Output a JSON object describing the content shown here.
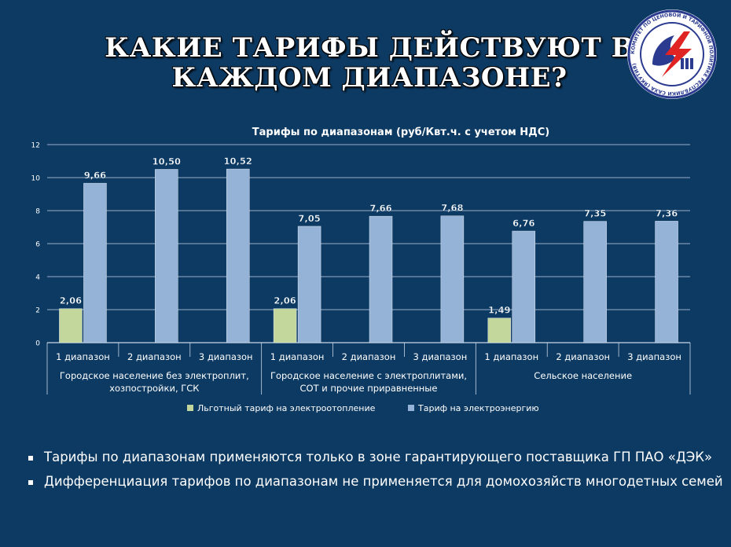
{
  "slide": {
    "title_line1": "КАКИЕ ТАРИФЫ ДЕЙСТВУЮТ В",
    "title_line2": "КАЖДОМ ДИАПАЗОНЕ?",
    "logo_text": "КОМИТЕТ ПО ЦЕНОВОЙ И ТАРИФНОЙ ПОЛИТИКЕ РЕСПУБЛИКИ САХА (ЯКУТИЯ)",
    "bullets": [
      "Тарифы по диапазонам применяются только в зоне гарантирующего поставщика ГП ПАО «ДЭК»",
      "Дифференциация тарифов по диапазонам не применяется для домохозяйств многодетных семей"
    ]
  },
  "chart_data": {
    "type": "bar",
    "title": "Тарифы по диапазонам (руб/Квт.ч. с учетом НДС)",
    "categories": [
      "1 диапазон",
      "2 диапазон",
      "3 диапазон",
      "1 диапазон",
      "2 диапазон",
      "3 диапазон",
      "1 диапазон",
      "2 диапазон",
      "3 диапазон"
    ],
    "groups": [
      {
        "label": [
          "Городское население без электроплит,",
          "хозпостройки, ГСК"
        ]
      },
      {
        "label": [
          "Городское население с электроплитами,",
          "СОТ и прочие приравненные"
        ]
      },
      {
        "label": [
          "Сельское население"
        ]
      }
    ],
    "series": [
      {
        "name": "Льготный тариф на электроотопление",
        "color": "#c3d69b",
        "values": [
          2.06,
          null,
          null,
          2.06,
          null,
          null,
          1.49,
          null,
          null
        ],
        "labels": [
          "2,06",
          "",
          "",
          "2,06",
          "",
          "",
          "1,49",
          "",
          ""
        ]
      },
      {
        "name": "Тариф на электроэнергию",
        "color": "#95b3d7",
        "values": [
          9.66,
          10.5,
          10.52,
          7.05,
          7.66,
          7.68,
          6.76,
          7.35,
          7.36
        ],
        "labels": [
          "9,66",
          "10,50",
          "10,52",
          "7,05",
          "7,66",
          "7,68",
          "6,76",
          "7,35",
          "7,36"
        ]
      }
    ],
    "ylim": [
      0,
      12
    ],
    "yticks": [
      "0",
      "2",
      "4",
      "6",
      "8",
      "10",
      "12"
    ],
    "grid": true,
    "legend": "bottom"
  }
}
